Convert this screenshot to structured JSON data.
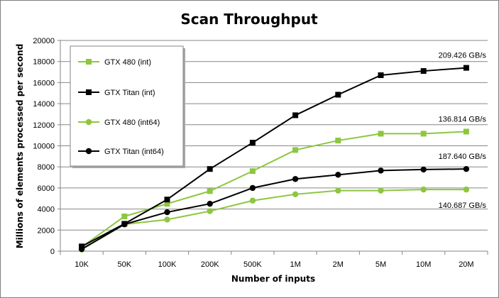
{
  "chart_data": {
    "type": "line",
    "title": "Scan Throughput",
    "xlabel": "Number of inputs",
    "ylabel": "Millions of elements processed per second",
    "categories": [
      "10K",
      "50K",
      "100K",
      "200K",
      "500K",
      "1M",
      "2M",
      "5M",
      "10M",
      "20M"
    ],
    "ylim": [
      0,
      20000
    ],
    "yticks": [
      0,
      2000,
      4000,
      6000,
      8000,
      10000,
      12000,
      14000,
      16000,
      18000,
      20000
    ],
    "grid": true,
    "legend_placement": "top-left",
    "series": [
      {
        "name": "GTX 480 (int)",
        "color": "#8dc63f",
        "marker": "square",
        "values": [
          400,
          3300,
          4500,
          5700,
          7600,
          9600,
          10500,
          11150,
          11150,
          11350
        ]
      },
      {
        "name": "GTX Titan (int)",
        "color": "#000000",
        "marker": "square",
        "values": [
          450,
          2600,
          4900,
          7800,
          10300,
          12900,
          14850,
          16700,
          17100,
          17400
        ]
      },
      {
        "name": "GTX 480 (int64)",
        "color": "#8dc63f",
        "marker": "circle",
        "values": [
          150,
          2550,
          3000,
          3800,
          4800,
          5400,
          5750,
          5750,
          5850,
          5850
        ]
      },
      {
        "name": "GTX Titan (int64)",
        "color": "#000000",
        "marker": "circle",
        "values": [
          200,
          2550,
          3700,
          4500,
          6000,
          6850,
          7250,
          7650,
          7750,
          7800
        ]
      }
    ],
    "annotations": [
      {
        "text": "209.426 GB/s",
        "series": 1
      },
      {
        "text": "136.814 GB/s",
        "series": 0
      },
      {
        "text": "187.640 GB/s",
        "series": 3
      },
      {
        "text": "140.687 GB/s",
        "series": 2
      }
    ]
  }
}
